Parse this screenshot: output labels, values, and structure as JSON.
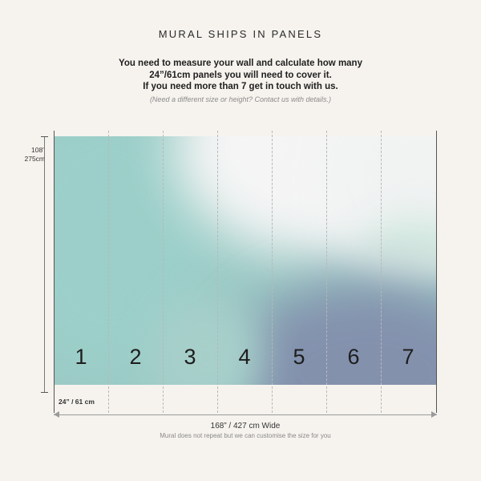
{
  "header": {
    "title": "MURAL SHIPS IN PANELS",
    "instructions": [
      "You need to measure your wall and calculate how many",
      "24”/61cm panels you will need to cover it.",
      "If you need more than 7 get in touch with us."
    ],
    "note": "(Need a different size or height? Contact us with details.)"
  },
  "height": {
    "inches": "108”",
    "cm": "275cm"
  },
  "mural": {
    "panels": [
      "1",
      "2",
      "3",
      "4",
      "5",
      "6",
      "7"
    ],
    "colors": {
      "teal": "#9ccbc6",
      "white": "#f4f4f4",
      "slate": "#8391ad",
      "mint": "#d4e9e2"
    }
  },
  "dimensions": {
    "panel_width": "24” / 61 cm",
    "total_width": "168” / 427 cm Wide",
    "repeat_note": "Mural does not repeat but we can customise the size for you"
  }
}
